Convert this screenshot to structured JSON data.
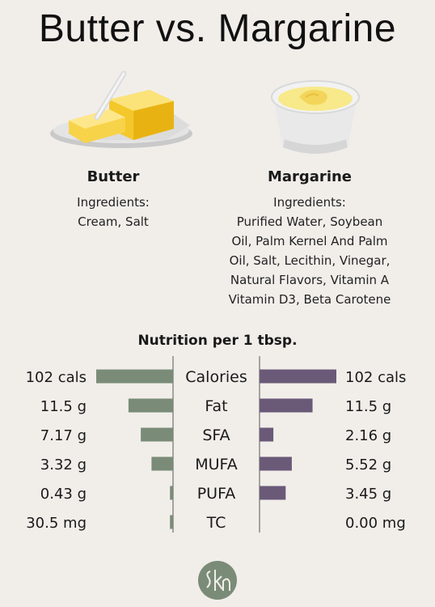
{
  "title": "Butter vs. Margarine",
  "butter": {
    "name": "Butter",
    "ingredients_label": "Ingredients:",
    "ingredients_lines": [
      "Cream, Salt"
    ]
  },
  "margarine": {
    "name": "Margarine",
    "ingredients_label": "Ingredients:",
    "ingredients_lines": [
      "Purified Water, Soybean",
      "Oil, Palm Kernel And Palm",
      "Oil, Salt, Lecithin, Vinegar,",
      "Natural Flavors, Vitamin A",
      "Vitamin D3, Beta Carotene"
    ]
  },
  "chart_data": {
    "type": "bar",
    "title": "Nutrition per 1 tbsp.",
    "categories": [
      "Calories",
      "Fat",
      "SFA",
      "MUFA",
      "PUFA",
      "TC"
    ],
    "series": [
      {
        "name": "Butter",
        "values": [
          102,
          11.5,
          7.17,
          3.32,
          0.43,
          30.5
        ],
        "labels": [
          "102 cals",
          "11.5 g",
          "7.17 g",
          "3.32 g",
          "0.43 g",
          "30.5 mg"
        ],
        "color": "#7a8c78"
      },
      {
        "name": "Margarine",
        "values": [
          102,
          11.5,
          2.16,
          5.52,
          3.45,
          0
        ],
        "labels": [
          "102 cals",
          "11.5 g",
          "2.16 g",
          "5.52 g",
          "3.45 g",
          "0.00 mg"
        ],
        "color": "#6a5a78"
      }
    ],
    "scale_note": "bars scaled per category to the larger of the two values; Calories full scale",
    "bar_fraction": {
      "Butter": [
        1.0,
        0.58,
        0.42,
        0.28,
        0.04,
        0.04
      ],
      "Margarine": [
        1.0,
        0.69,
        0.18,
        0.42,
        0.34,
        0.0
      ]
    }
  },
  "logo_text": "SKN",
  "colors": {
    "background": "#f1eeea",
    "butter_bar": "#7a8c78",
    "margarine_bar": "#6a5a78",
    "logo": "#7a8c78"
  }
}
